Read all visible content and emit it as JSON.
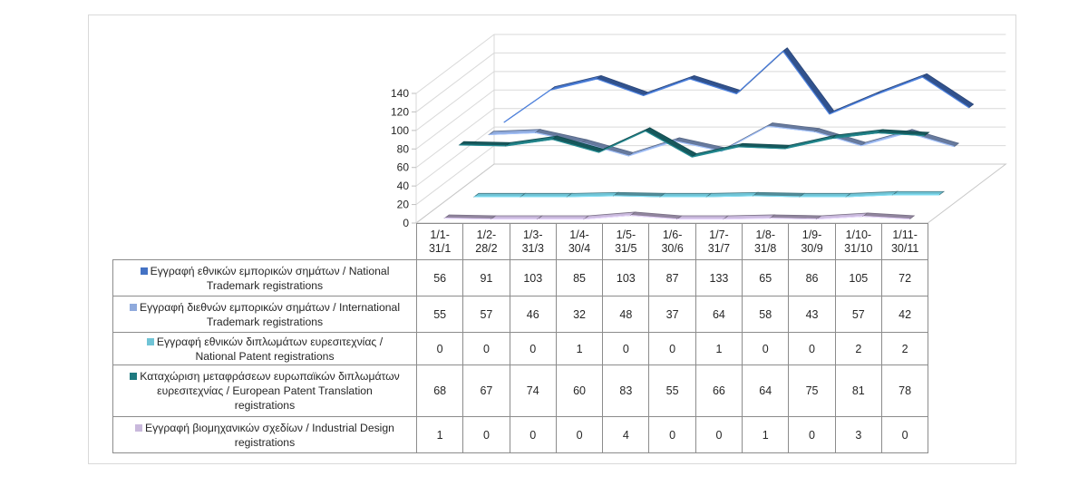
{
  "chart_data": {
    "type": "line",
    "style": "3d-line-with-data-table",
    "categories": [
      "1/1-31/1",
      "1/2-28/2",
      "1/3-31/3",
      "1/4-30/4",
      "1/5-31/5",
      "1/6-30/6",
      "1/7-31/7",
      "1/8-31/8",
      "1/9-30/9",
      "1/10-31/10",
      "1/11-30/11"
    ],
    "category_lines": [
      [
        "1/1-",
        "31/1"
      ],
      [
        "1/2-",
        "28/2"
      ],
      [
        "1/3-",
        "31/3"
      ],
      [
        "1/4-",
        "30/4"
      ],
      [
        "1/5-",
        "31/5"
      ],
      [
        "1/6-",
        "30/6"
      ],
      [
        "1/7-",
        "31/7"
      ],
      [
        "1/8-",
        "31/8"
      ],
      [
        "1/9-",
        "30/9"
      ],
      [
        "1/10-",
        "31/10"
      ],
      [
        "1/11-",
        "30/11"
      ]
    ],
    "series": [
      {
        "name": "Εγγραφή εθνικών εμπορικών σημάτων / National Trademark registrations",
        "label_lines": [
          "Εγγραφή εθνικών εμπορικών σημάτων / National",
          "Trademark registrations"
        ],
        "color": "#4472c4",
        "values": [
          56,
          91,
          103,
          85,
          103,
          87,
          133,
          65,
          86,
          105,
          72
        ]
      },
      {
        "name": "Εγγραφή διεθνών εμπορικών σημάτων / International Trademark registrations",
        "label_lines": [
          "Εγγραφή διεθνών εμπορικών σημάτων / International",
          "Trademark registrations"
        ],
        "color": "#8faadc",
        "values": [
          55,
          57,
          46,
          32,
          48,
          37,
          64,
          58,
          43,
          57,
          42
        ]
      },
      {
        "name": "Εγγραφή εθνικών διπλωμάτων ευρεσιτεχνίας / National Patent registrations",
        "label_lines": [
          "Εγγραφή εθνικών διπλωμάτων ευρεσιτεχνίας /",
          "National Patent registrations"
        ],
        "color": "#70c4d6",
        "values": [
          0,
          0,
          0,
          1,
          0,
          0,
          1,
          0,
          0,
          2,
          2
        ]
      },
      {
        "name": "Καταχώριση μεταφράσεων ευρωπαϊκών διπλωμάτων ευρεσιτεχνίας / European Patent Translation registrations",
        "label_lines": [
          "Καταχώριση μεταφράσεων ευρωπαϊκών διπλωμάτων",
          "ευρεσιτεχνίας / European Patent Translation",
          "registrations"
        ],
        "color": "#1f7a80",
        "values": [
          68,
          67,
          74,
          60,
          83,
          55,
          66,
          64,
          75,
          81,
          78
        ]
      },
      {
        "name": "Εγγραφή βιομηχανικών σχεδίων / Industrial Design registrations",
        "label_lines": [
          "Εγγραφή βιομηχανικών σχεδίων / Industrial Design",
          "registrations"
        ],
        "color": "#c9b9dc",
        "values": [
          1,
          0,
          0,
          0,
          4,
          0,
          0,
          1,
          0,
          3,
          0
        ]
      }
    ],
    "y_ticks": [
      0,
      20,
      40,
      60,
      80,
      100,
      120,
      140
    ],
    "ylim": [
      0,
      140
    ],
    "title": "",
    "xlabel": "",
    "ylabel": "",
    "grid": true,
    "legend": "data-table-left"
  }
}
